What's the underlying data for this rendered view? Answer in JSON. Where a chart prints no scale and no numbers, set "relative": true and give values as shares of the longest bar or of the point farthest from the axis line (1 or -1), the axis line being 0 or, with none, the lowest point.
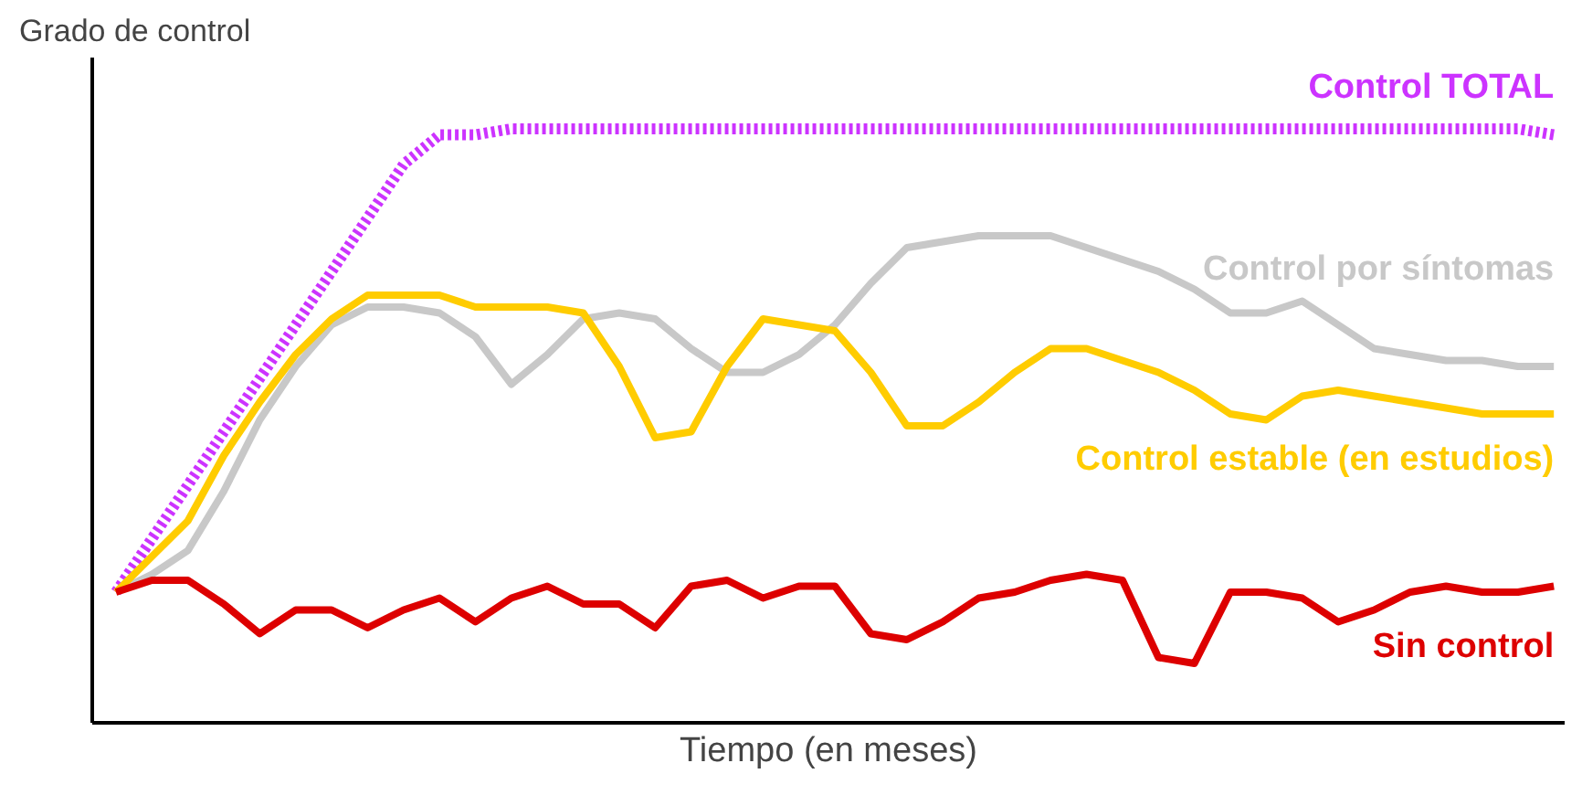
{
  "chart_data": {
    "type": "line",
    "relative": true,
    "xlabel": "Tiempo (en meses)",
    "ylabel": "Grado de control",
    "line_style": "solid",
    "categories": [
      null,
      null,
      null,
      null,
      null,
      null,
      null,
      null,
      null,
      null,
      null,
      null,
      null,
      null,
      null,
      null,
      null,
      null,
      null,
      null,
      null,
      null,
      null,
      null,
      null,
      null,
      null,
      null,
      null,
      null,
      null,
      null,
      null,
      null,
      null,
      null,
      null,
      null,
      null,
      null,
      null
    ],
    "series": [
      {
        "name": "Control TOTAL",
        "color": "#cc33ff",
        "line_style": "dotted",
        "values": [
          0.22,
          0.31,
          0.4,
          0.49,
          0.58,
          0.67,
          0.76,
          0.85,
          0.94,
          0.99,
          0.99,
          1.0,
          1.0,
          1.0,
          1.0,
          1.0,
          1.0,
          1.0,
          1.0,
          1.0,
          1.0,
          1.0,
          1.0,
          1.0,
          1.0,
          1.0,
          1.0,
          1.0,
          1.0,
          1.0,
          1.0,
          1.0,
          1.0,
          1.0,
          1.0,
          1.0,
          1.0,
          1.0,
          1.0,
          1.0,
          0.99
        ]
      },
      {
        "name": "Control por síntomas",
        "color": "#c8c8c8",
        "values": [
          0.22,
          0.25,
          0.29,
          0.39,
          0.51,
          0.6,
          0.67,
          0.7,
          0.7,
          0.69,
          0.65,
          0.57,
          0.62,
          0.68,
          0.69,
          0.68,
          0.63,
          0.59,
          0.59,
          0.62,
          0.67,
          0.74,
          0.8,
          0.81,
          0.82,
          0.82,
          0.82,
          0.8,
          0.78,
          0.76,
          0.73,
          0.69,
          0.69,
          0.71,
          0.67,
          0.63,
          0.62,
          0.61,
          0.61,
          0.6,
          0.6
        ]
      },
      {
        "name": "Control estable (en estudios)",
        "color": "#ffcc00",
        "values": [
          0.22,
          0.28,
          0.34,
          0.45,
          0.54,
          0.62,
          0.68,
          0.72,
          0.72,
          0.72,
          0.7,
          0.7,
          0.7,
          0.69,
          0.6,
          0.48,
          0.49,
          0.6,
          0.68,
          0.67,
          0.66,
          0.59,
          0.5,
          0.5,
          0.54,
          0.59,
          0.63,
          0.63,
          0.61,
          0.59,
          0.56,
          0.52,
          0.51,
          0.55,
          0.56,
          0.55,
          0.54,
          0.53,
          0.52,
          0.52,
          0.52
        ]
      },
      {
        "name": "Sin control",
        "color": "#dd0000",
        "values": [
          0.22,
          0.24,
          0.24,
          0.2,
          0.15,
          0.19,
          0.19,
          0.16,
          0.19,
          0.21,
          0.17,
          0.21,
          0.23,
          0.2,
          0.2,
          0.16,
          0.23,
          0.24,
          0.21,
          0.23,
          0.23,
          0.15,
          0.14,
          0.17,
          0.21,
          0.22,
          0.24,
          0.25,
          0.24,
          0.11,
          0.1,
          0.22,
          0.22,
          0.21,
          0.17,
          0.19,
          0.22,
          0.23,
          0.22,
          0.22,
          0.23
        ]
      }
    ]
  }
}
